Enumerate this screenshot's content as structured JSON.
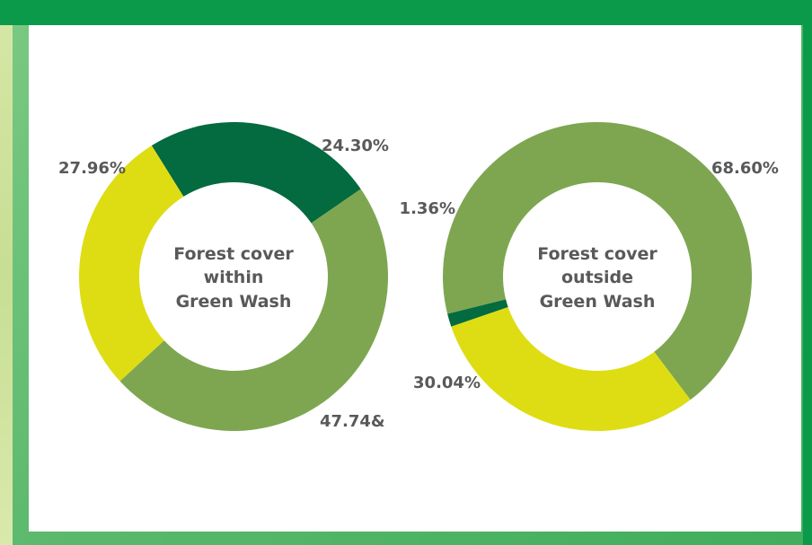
{
  "chart_data": [
    {
      "type": "pie",
      "center_label": [
        "Forest cover",
        "within",
        "Green Wash"
      ],
      "slices": [
        {
          "label": "24.30%",
          "value": 24.3,
          "color": "#046a3f"
        },
        {
          "label": "47.74&",
          "value": 47.74,
          "color": "#7ea651"
        },
        {
          "label": "27.96%",
          "value": 27.96,
          "color": "#dedd14"
        }
      ]
    },
    {
      "type": "pie",
      "center_label": [
        "Forest cover",
        "outside",
        "Green Wash"
      ],
      "slices": [
        {
          "label": "68.60%",
          "value": 68.6,
          "color": "#7ea651"
        },
        {
          "label": "30.04%",
          "value": 30.04,
          "color": "#dedd14"
        },
        {
          "label": "1.36%",
          "value": 1.36,
          "color": "#046a3f"
        }
      ]
    }
  ]
}
